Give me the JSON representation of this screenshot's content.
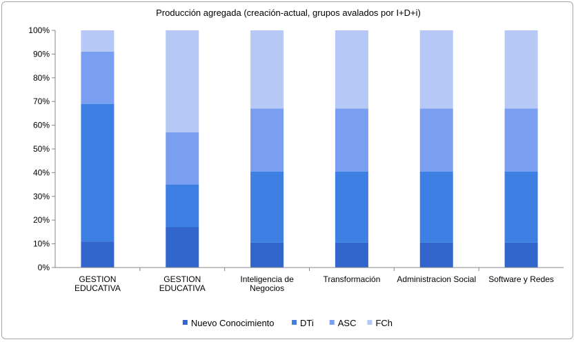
{
  "chart_data": {
    "type": "bar",
    "stacked": true,
    "percent": true,
    "title": "Producción agregada (creación-actual, grupos avalados por I+D+i)",
    "categories": [
      [
        "GESTION",
        "EDUCATIVA"
      ],
      [
        "GESTION",
        "EDUCATIVA"
      ],
      [
        "Inteligencia de",
        "Negocios"
      ],
      [
        "Transformación"
      ],
      [
        "Administracion Social"
      ],
      [
        "Software y Redes"
      ]
    ],
    "series": [
      {
        "name": "Nuevo Conocimiento",
        "color": "#3366cc",
        "values": [
          11,
          17,
          10.5,
          10.5,
          10.5,
          10.5
        ]
      },
      {
        "name": "DTi",
        "color": "#3d7fe3",
        "values": [
          58,
          18,
          30,
          30,
          30,
          30
        ]
      },
      {
        "name": "ASC",
        "color": "#7a9ff0",
        "values": [
          22,
          22,
          26.5,
          26.5,
          26.5,
          26.5
        ]
      },
      {
        "name": "FCh",
        "color": "#b6c8f5",
        "values": [
          9,
          43,
          33,
          33,
          33,
          33
        ]
      }
    ],
    "ylim": [
      0,
      100
    ],
    "yticks": [
      "0%",
      "10%",
      "20%",
      "30%",
      "40%",
      "50%",
      "60%",
      "70%",
      "80%",
      "90%",
      "100%"
    ],
    "legend_position": "bottom",
    "grid": false
  }
}
